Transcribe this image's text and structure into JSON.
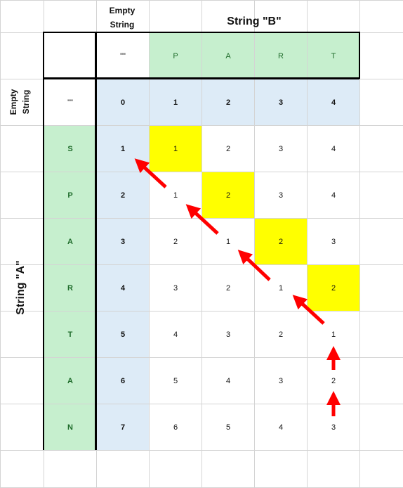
{
  "headers": {
    "empty_string_top": "Empty\nString",
    "string_b_title": "String \"B\"",
    "empty_string_side": "Empty\nString",
    "string_a_title": "String \"A\""
  },
  "string_b": [
    "\"\"",
    "P",
    "A",
    "R",
    "T"
  ],
  "string_a": [
    "\"\"",
    "S",
    "P",
    "A",
    "R",
    "T",
    "A",
    "N"
  ],
  "matrix": [
    [
      "0",
      "1",
      "2",
      "3",
      "4"
    ],
    [
      "1",
      "1",
      "2",
      "3",
      "4"
    ],
    [
      "2",
      "1",
      "2",
      "3",
      "4"
    ],
    [
      "3",
      "2",
      "1",
      "2",
      "3"
    ],
    [
      "4",
      "3",
      "2",
      "1",
      "2"
    ],
    [
      "5",
      "4",
      "3",
      "2",
      "1"
    ],
    [
      "6",
      "5",
      "4",
      "3",
      "2"
    ],
    [
      "7",
      "6",
      "5",
      "4",
      "3"
    ]
  ],
  "highlight_path": [
    [
      1,
      1
    ],
    [
      2,
      2
    ],
    [
      3,
      3
    ],
    [
      4,
      4
    ],
    [
      5,
      5
    ],
    [
      6,
      5
    ]
  ],
  "final_cell": [
    7,
    5
  ],
  "colors": {
    "header_green": "#c6efce",
    "base_blue": "#ddebf7",
    "path_yellow": "#ffff00",
    "final_orange": "#f79646",
    "arrow_red": "#ff0000"
  }
}
